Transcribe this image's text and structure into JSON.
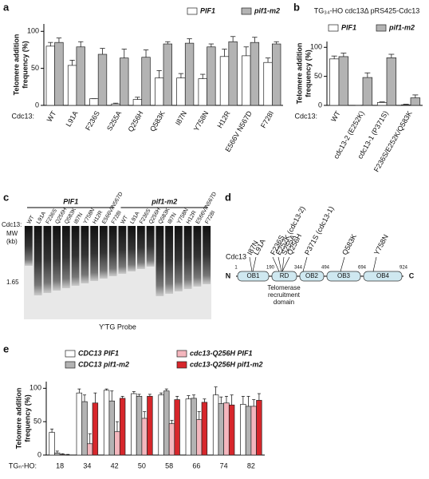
{
  "panel_labels": [
    "a",
    "b",
    "c",
    "d",
    "e"
  ],
  "chart_data": [
    {
      "type": "bar",
      "ylabel": [
        "Telomere addition",
        "frequency (%)"
      ],
      "category_label": "Cdc13:",
      "categories": [
        "WT",
        "L91A",
        "F236S",
        "S255A",
        "Q256H",
        "Q583K",
        "I87N",
        "Y758N",
        "H12R",
        "E566V N567D",
        "F728I"
      ],
      "series": [
        {
          "name": "PIF1",
          "color": "#ffffff",
          "values": [
            80,
            54,
            9,
            2,
            8,
            37,
            37,
            36,
            66,
            67,
            58
          ],
          "errors": [
            5,
            7,
            0,
            1,
            3,
            10,
            6,
            6,
            10,
            12,
            6
          ]
        },
        {
          "name": "pif1-m2",
          "color": "#b3b3b3",
          "values": [
            85,
            79,
            69,
            64,
            65,
            83,
            84,
            79,
            86,
            85,
            83
          ],
          "errors": [
            6,
            7,
            8,
            12,
            10,
            3,
            6,
            4,
            7,
            7,
            3
          ]
        }
      ],
      "ylim": [
        0,
        110
      ],
      "yticks": [
        0,
        50,
        100
      ]
    },
    {
      "type": "bar",
      "title": "TG₃₄-HO cdc13Δ pRS425-Cdc13",
      "ylabel": [
        "Telomere addition",
        "frequency (%)"
      ],
      "category_label": "Cdc13:",
      "categories": [
        "WT",
        "cdc13-2 (E252K)",
        "cdc13-1 (P371S)",
        "F236S/E252K/Q583K"
      ],
      "series": [
        {
          "name": "PIF1",
          "color": "#ffffff",
          "values": [
            80,
            0,
            5,
            1
          ],
          "errors": [
            5,
            0,
            1,
            1
          ]
        },
        {
          "name": "pif1-m2",
          "color": "#b3b3b3",
          "values": [
            84,
            48,
            82,
            13
          ],
          "errors": [
            6,
            8,
            6,
            5
          ]
        }
      ],
      "ylim": [
        0,
        110
      ],
      "yticks": [
        0,
        50,
        100
      ]
    },
    {
      "type": "bar",
      "ylabel": [
        "Telomere addition",
        "frequency (%)"
      ],
      "category_label": "TGₙ-HO:",
      "categories": [
        "18",
        "34",
        "42",
        "50",
        "58",
        "66",
        "74",
        "82"
      ],
      "series": [
        {
          "name": "CDC13 PIF1",
          "color": "#ffffff",
          "values": [
            34,
            93,
            97,
            92,
            90,
            84,
            90,
            76
          ],
          "errors": [
            5,
            6,
            2,
            3,
            3,
            5,
            12,
            12
          ]
        },
        {
          "name": "CDC13 pif1-m2",
          "color": "#b3b3b3",
          "values": [
            3,
            80,
            81,
            88,
            96,
            85,
            77,
            73
          ],
          "errors": [
            3,
            10,
            15,
            3,
            3,
            5,
            10,
            15
          ]
        },
        {
          "name": "cdc13-Q256H PIF1",
          "color": "#f4b6bd",
          "values": [
            1,
            17,
            35,
            55,
            47,
            53,
            78,
            73
          ],
          "errors": [
            1,
            15,
            15,
            10,
            5,
            12,
            10,
            10
          ]
        },
        {
          "name": "cdc13-Q256H pif1-m2",
          "color": "#d7262b",
          "values": [
            0,
            78,
            85,
            88,
            83,
            79,
            75,
            82
          ],
          "errors": [
            1,
            15,
            3,
            3,
            5,
            5,
            15,
            10
          ]
        }
      ],
      "ylim": [
        0,
        110
      ],
      "yticks": [
        0,
        50,
        100
      ]
    }
  ],
  "gel": {
    "groups": [
      "PIF1",
      "pif1-m2"
    ],
    "row_label": "Cdc13:",
    "mw_label": [
      "MW",
      "(kb)"
    ],
    "marker": "1.65",
    "lanes": [
      "WT",
      "L91A",
      "F236S",
      "Q256H",
      "Q583K",
      "I87N",
      "Y758N",
      "H12R",
      "E566V/N567D",
      "F728I",
      "WT",
      "L91A",
      "F236S",
      "Q256H",
      "Q583K",
      "I87N",
      "Y758N",
      "H12R",
      "E566V/N567D",
      "F728I"
    ],
    "probe": "Y'TG Probe"
  },
  "diagram": {
    "protein": "Cdc13",
    "n_term": "N",
    "c_term": "C",
    "domains": [
      "OB1",
      "RD",
      "OB2",
      "OB3",
      "OB4"
    ],
    "positions": [
      "1",
      "190",
      "344",
      "494",
      "694",
      "924"
    ],
    "rd_caption": [
      "Telomerase",
      "recruitment",
      "domain"
    ],
    "mutations": [
      "I87N",
      "L91A",
      "F236S",
      "E252K (cdc13-2)",
      "S255A",
      "Q256H",
      "P371S (cdc13-1)",
      "Q583K",
      "Y758N"
    ]
  }
}
